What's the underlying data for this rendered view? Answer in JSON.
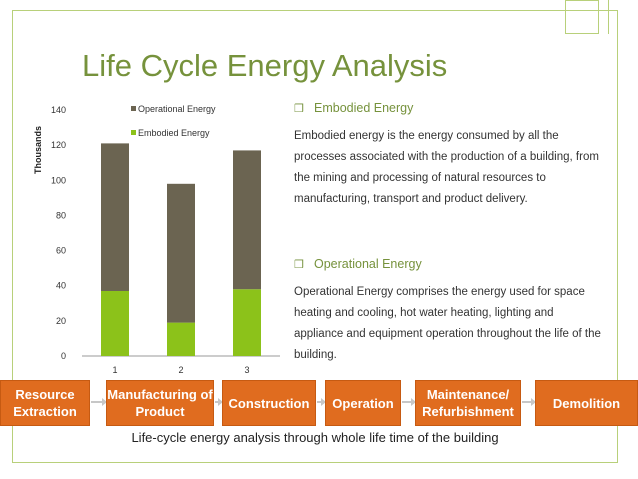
{
  "slide": {
    "title": "Life Cycle Energy Analysis",
    "bullets": [
      {
        "heading": "Embodied Energy",
        "text": "Embodied energy is the energy consumed by all the processes associated with the production of a building, from the mining and processing of natural resources to manufacturing, transport and product delivery."
      },
      {
        "heading": "Operational Energy",
        "text": "Operational Energy comprises the energy used for space heating and cooling, hot water heating, lighting and appliance and equipment operation throughout the life of the building."
      }
    ],
    "bullet_icon": "square-bullet-icon",
    "flow": [
      "Resource Extraction",
      "Manufacturing of Product",
      "Construction",
      "Operation",
      "Maintenance/ Refurbishment",
      "Demolition"
    ],
    "caption": "Life-cycle energy analysis through whole life time of the building",
    "colors": {
      "title": "#76923c",
      "accent": "#76923c",
      "flow_box": "#e06c1f",
      "operational": "#6b6451",
      "embodied": "#8cc21a"
    }
  },
  "chart_data": {
    "type": "bar",
    "stacked": true,
    "categories": [
      "1",
      "2",
      "3"
    ],
    "series": [
      {
        "name": "Embodied Energy",
        "values": [
          37,
          19,
          38
        ],
        "color": "#8cc21a"
      },
      {
        "name": "Operational Energy",
        "values": [
          84,
          79,
          79
        ],
        "color": "#6b6451"
      }
    ],
    "ylabel": "Thousands",
    "xlabel": "",
    "ylim": [
      0,
      140
    ],
    "yticks": [
      "0",
      "20",
      "40",
      "60",
      "80",
      "100",
      "120",
      "140"
    ],
    "grid": false,
    "legend": "top-right"
  }
}
